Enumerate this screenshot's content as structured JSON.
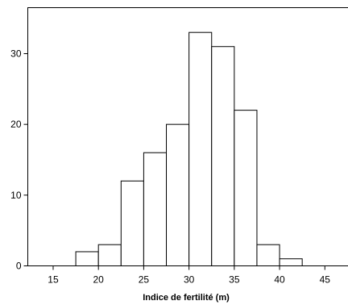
{
  "chart_data": {
    "type": "bar",
    "subtype": "histogram",
    "xlabel": "Indice de fertilité (m)",
    "ylabel": "",
    "bin_width": 2.5,
    "bins": [
      {
        "start": 12.5,
        "end": 15.0,
        "count": 0
      },
      {
        "start": 15.0,
        "end": 17.5,
        "count": 0
      },
      {
        "start": 17.5,
        "end": 20.0,
        "count": 2
      },
      {
        "start": 20.0,
        "end": 22.5,
        "count": 3
      },
      {
        "start": 22.5,
        "end": 25.0,
        "count": 12
      },
      {
        "start": 25.0,
        "end": 27.5,
        "count": 16
      },
      {
        "start": 27.5,
        "end": 30.0,
        "count": 20
      },
      {
        "start": 30.0,
        "end": 32.5,
        "count": 33
      },
      {
        "start": 32.5,
        "end": 35.0,
        "count": 31
      },
      {
        "start": 35.0,
        "end": 37.5,
        "count": 22
      },
      {
        "start": 37.5,
        "end": 40.0,
        "count": 3
      },
      {
        "start": 40.0,
        "end": 42.5,
        "count": 1
      },
      {
        "start": 42.5,
        "end": 45.0,
        "count": 0
      },
      {
        "start": 45.0,
        "end": 47.5,
        "count": 0
      }
    ],
    "xlim": [
      12.2,
      47.6
    ],
    "ylim": [
      0,
      36.5
    ],
    "x_ticks": [
      "15",
      "20",
      "25",
      "30",
      "35",
      "40",
      "45"
    ],
    "y_ticks": [
      "0",
      "10",
      "20",
      "30"
    ],
    "grid": false,
    "bar_fill": "#ffffff",
    "bar_stroke": "#000000"
  }
}
